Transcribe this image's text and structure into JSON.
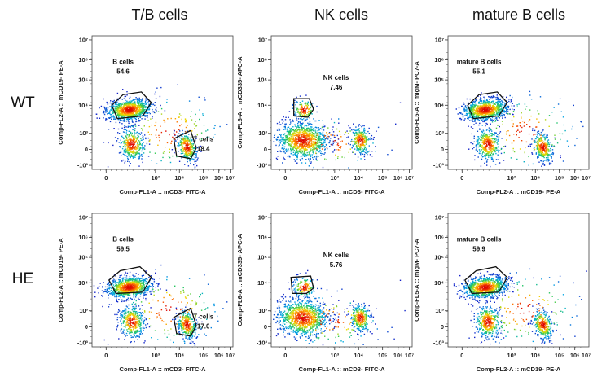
{
  "figure": {
    "column_titles": [
      "T/B cells",
      "NK cells",
      "mature B cells"
    ],
    "row_labels": [
      "WT",
      "HE"
    ]
  },
  "chart_data": [
    {
      "id": "wt-tb",
      "row": 0,
      "col": 0,
      "type": "scatter",
      "title": "T/B cells",
      "row_label": "WT",
      "xlabel": "Comp-FL1-A :: mCD3- FITC-A",
      "ylabel": "Comp-FL2-A :: mCD19- PE-A",
      "x_ticks": [
        "0",
        "10³",
        "10⁴",
        "10⁵",
        "10⁶",
        "10⁷"
      ],
      "y_ticks": [
        "-10³",
        "0",
        "10³",
        "10⁴",
        "10⁵",
        "10⁶",
        "10⁷"
      ],
      "gates": [
        {
          "name": "B cells",
          "percent": "54.6"
        },
        {
          "name": "T cells",
          "percent": "18.4"
        }
      ]
    },
    {
      "id": "wt-nk",
      "row": 0,
      "col": 1,
      "type": "scatter",
      "title": "NK cells",
      "row_label": "WT",
      "xlabel": "Comp-FL1-A :: mCD3- FITC-A",
      "ylabel": "Comp-FL6-A :: mCD335- APC-A",
      "x_ticks": [
        "0",
        "10³",
        "10⁴",
        "10⁵",
        "10⁶",
        "10⁷"
      ],
      "y_ticks": [
        "-10³",
        "0",
        "10³",
        "10⁴",
        "10⁵",
        "10⁶",
        "10⁷"
      ],
      "gates": [
        {
          "name": "NK cells",
          "percent": "7.46"
        }
      ]
    },
    {
      "id": "wt-matb",
      "row": 0,
      "col": 2,
      "type": "scatter",
      "title": "mature B cells",
      "row_label": "WT",
      "xlabel": "Comp-FL2-A :: mCD19- PE-A",
      "ylabel": "Comp-FL5-A :: mIgM- PC7-A",
      "x_ticks": [
        "0",
        "10³",
        "10⁴",
        "10⁵",
        "10⁶",
        "10⁷"
      ],
      "y_ticks": [
        "-10³",
        "0",
        "10³",
        "10⁴",
        "10⁵",
        "10⁶",
        "10⁷"
      ],
      "gates": [
        {
          "name": "mature B cells",
          "percent": "55.1"
        }
      ]
    },
    {
      "id": "he-tb",
      "row": 1,
      "col": 0,
      "type": "scatter",
      "title": "T/B cells",
      "row_label": "HE",
      "xlabel": "Comp-FL1-A :: mCD3- FITC-A",
      "ylabel": "Comp-FL2-A :: mCD19- PE-A",
      "x_ticks": [
        "0",
        "10³",
        "10⁴",
        "10⁵",
        "10⁶",
        "10⁷"
      ],
      "y_ticks": [
        "-10³",
        "0",
        "10³",
        "10⁴",
        "10⁵",
        "10⁶",
        "10⁷"
      ],
      "gates": [
        {
          "name": "B cells",
          "percent": "59.5"
        },
        {
          "name": "T cells",
          "percent": "17.0"
        }
      ]
    },
    {
      "id": "he-nk",
      "row": 1,
      "col": 1,
      "type": "scatter",
      "title": "NK cells",
      "row_label": "HE",
      "xlabel": "Comp-FL1-A :: mCD3- FITC-A",
      "ylabel": "Comp-FL6-A :: mCD335- APC-A",
      "x_ticks": [
        "0",
        "10³",
        "10⁴",
        "10⁵",
        "10⁶",
        "10⁷"
      ],
      "y_ticks": [
        "-10³",
        "0",
        "10³",
        "10⁴",
        "10⁵",
        "10⁶",
        "10⁷"
      ],
      "gates": [
        {
          "name": "NK cells",
          "percent": "5.76"
        }
      ]
    },
    {
      "id": "he-matb",
      "row": 1,
      "col": 2,
      "type": "scatter",
      "title": "mature B cells",
      "row_label": "HE",
      "xlabel": "Comp-FL2-A :: mCD19- PE-A",
      "ylabel": "Comp-FL5-A :: mIgM- PC7-A",
      "x_ticks": [
        "0",
        "10³",
        "10⁴",
        "10⁵",
        "10⁶",
        "10⁷"
      ],
      "y_ticks": [
        "-10³",
        "0",
        "10³",
        "10⁴",
        "10⁵",
        "10⁶",
        "10⁷"
      ],
      "gates": [
        {
          "name": "mature B cells",
          "percent": "59.9"
        }
      ]
    }
  ]
}
